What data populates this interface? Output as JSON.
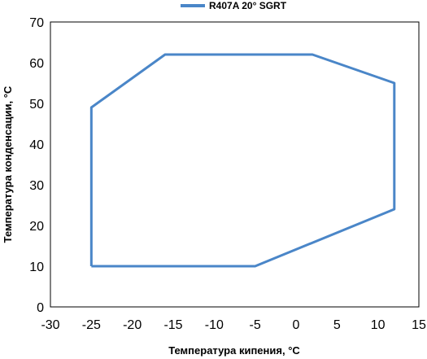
{
  "chart_data": {
    "type": "line",
    "title": "",
    "xlabel": "Температура кипения, °C",
    "ylabel": "Температура конденсации, °C",
    "xlim": [
      -30,
      15
    ],
    "ylim": [
      0,
      70
    ],
    "xticks": [
      -30,
      -25,
      -20,
      -15,
      -10,
      -5,
      0,
      5,
      10,
      15
    ],
    "yticks": [
      0,
      10,
      20,
      30,
      40,
      50,
      60,
      70
    ],
    "grid": false,
    "legend": "top-center",
    "series": [
      {
        "name": "R407A 20° SGRT",
        "color": "#4a86c8",
        "x": [
          -25,
          -25,
          -16,
          2,
          12,
          12,
          -5,
          -25
        ],
        "y": [
          10,
          49,
          62,
          62,
          55,
          24,
          10,
          10
        ]
      }
    ]
  }
}
